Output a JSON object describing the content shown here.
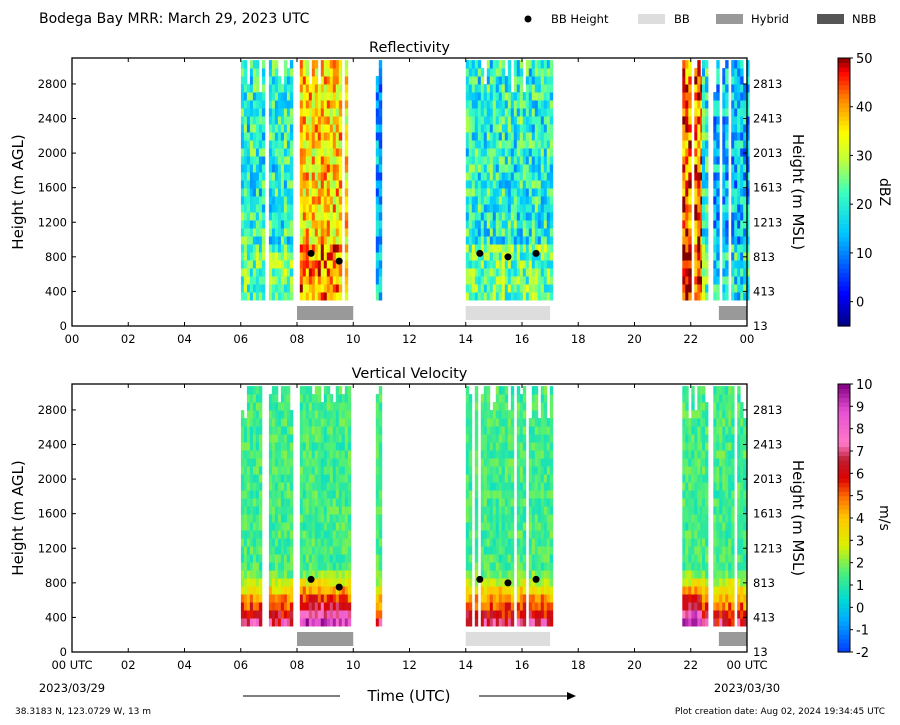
{
  "header": {
    "title": "Bodega Bay MRR:  March 29, 2023 UTC",
    "legend": [
      {
        "label": "BB Height",
        "kind": "dot",
        "color": "#000000"
      },
      {
        "label": "BB",
        "kind": "rect",
        "color": "#dddddd"
      },
      {
        "label": "Hybrid",
        "kind": "rect",
        "color": "#999999"
      },
      {
        "label": "NBB",
        "kind": "rect",
        "color": "#555555"
      }
    ]
  },
  "footer": {
    "location": "38.3183 N, 123.0729 W, 13 m",
    "creation": "Plot creation date: Aug 02, 2024 19:34:45 UTC",
    "xlabel": "Time (UTC)",
    "start_date": "2023/03/29",
    "end_date": "2023/03/30"
  },
  "chart_data": [
    {
      "type": "heatmap",
      "title": "Reflectivity",
      "ylabel": "Height (m AGL)",
      "y2label": "Height (m MSL)",
      "xlim": [
        0,
        24
      ],
      "ylim": [
        0,
        3100
      ],
      "xticks": [
        "00",
        "02",
        "04",
        "06",
        "08",
        "10",
        "12",
        "14",
        "16",
        "18",
        "20",
        "22",
        "00"
      ],
      "yticks": [
        0,
        400,
        800,
        1200,
        1600,
        2000,
        2400,
        2800
      ],
      "y2ticks": [
        13,
        413,
        813,
        1213,
        1613,
        2013,
        2413,
        2813
      ],
      "colorbar": {
        "label": "dBZ",
        "range": [
          -5,
          50
        ],
        "ticks": [
          0,
          10,
          20,
          30,
          40,
          50
        ],
        "colormap": "jet"
      },
      "precip_periods": [
        {
          "start": 5.9,
          "end": 6.8,
          "level": 0.45
        },
        {
          "start": 7.0,
          "end": 7.8,
          "level": 0.45
        },
        {
          "start": 8.1,
          "end": 9.9,
          "level": 0.75
        },
        {
          "start": 10.8,
          "end": 10.95,
          "level": 0.3
        },
        {
          "start": 14.0,
          "end": 17.0,
          "level": 0.45
        },
        {
          "start": 21.7,
          "end": 22.35,
          "level": 0.85
        },
        {
          "start": 22.4,
          "end": 22.6,
          "level": 0.45
        },
        {
          "start": 22.8,
          "end": 24.0,
          "level": 0.35
        }
      ],
      "bb_heights": [
        {
          "time": 8.5,
          "height": 840
        },
        {
          "time": 9.5,
          "height": 750
        },
        {
          "time": 14.5,
          "height": 840
        },
        {
          "time": 15.5,
          "height": 800
        },
        {
          "time": 16.5,
          "height": 840
        }
      ],
      "bands": [
        {
          "start": 8.0,
          "end": 10.0,
          "type": "Hybrid"
        },
        {
          "start": 14.0,
          "end": 17.0,
          "type": "BB"
        },
        {
          "start": 23.0,
          "end": 24.0,
          "type": "Hybrid"
        }
      ]
    },
    {
      "type": "heatmap",
      "title": "Vertical Velocity",
      "ylabel": "Height (m AGL)",
      "y2label": "Height (m MSL)",
      "xlim": [
        0,
        24
      ],
      "ylim": [
        0,
        3100
      ],
      "xticks": [
        "00 UTC",
        "02",
        "04",
        "06",
        "08",
        "10",
        "12",
        "14",
        "16",
        "18",
        "20",
        "22",
        "00 UTC"
      ],
      "yticks": [
        0,
        400,
        800,
        1200,
        1600,
        2000,
        2400,
        2800
      ],
      "y2ticks": [
        13,
        413,
        813,
        1213,
        1613,
        2013,
        2413,
        2813
      ],
      "colorbar": {
        "label": "m/s",
        "range": [
          -2,
          10
        ],
        "ticks": [
          -2,
          -1,
          0,
          1,
          2,
          3,
          4,
          5,
          6,
          7,
          8,
          9,
          10
        ],
        "colormap": "velocity"
      },
      "precip_periods": [
        {
          "start": 5.9,
          "end": 6.8,
          "level": 0.45
        },
        {
          "start": 7.0,
          "end": 7.8,
          "level": 0.45
        },
        {
          "start": 8.1,
          "end": 9.9,
          "level": 0.75
        },
        {
          "start": 10.8,
          "end": 10.95,
          "level": 0.3
        },
        {
          "start": 14.0,
          "end": 17.0,
          "level": 0.45
        },
        {
          "start": 21.7,
          "end": 22.35,
          "level": 0.85
        },
        {
          "start": 22.4,
          "end": 22.6,
          "level": 0.45
        },
        {
          "start": 22.8,
          "end": 24.0,
          "level": 0.35
        }
      ],
      "bb_heights": [
        {
          "time": 8.5,
          "height": 840
        },
        {
          "time": 9.5,
          "height": 750
        },
        {
          "time": 14.5,
          "height": 840
        },
        {
          "time": 15.5,
          "height": 800
        },
        {
          "time": 16.5,
          "height": 840
        }
      ],
      "bands": [
        {
          "start": 8.0,
          "end": 10.0,
          "type": "Hybrid"
        },
        {
          "start": 14.0,
          "end": 17.0,
          "type": "BB"
        },
        {
          "start": 23.0,
          "end": 24.0,
          "type": "Hybrid"
        }
      ]
    }
  ]
}
